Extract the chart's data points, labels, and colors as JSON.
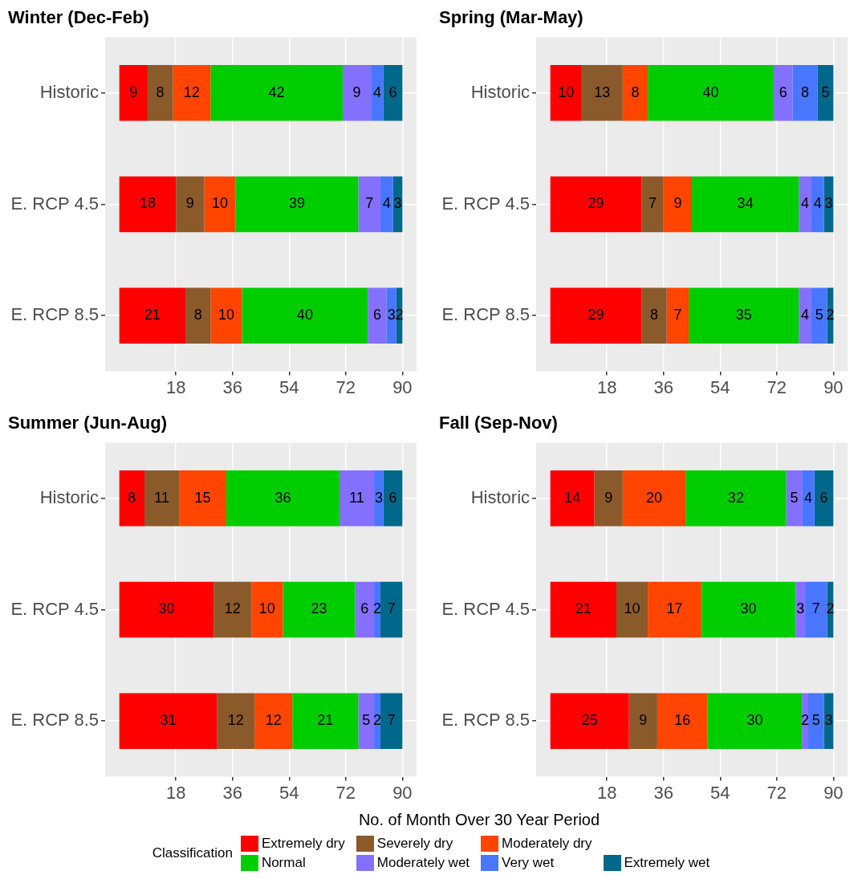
{
  "chart_data": [
    {
      "type": "bar",
      "orientation": "horizontal",
      "stacked": true,
      "title": "Winter (Dec-Feb)",
      "categories": [
        "Historic",
        "E. RCP 4.5",
        "E. RCP 8.5"
      ],
      "xlim": [
        -4.5,
        94.5
      ],
      "xticks": [
        18,
        36,
        54,
        72,
        90
      ],
      "grid": true,
      "data_labels": true,
      "xlabel": "No. of Month Over 30 Year Period",
      "legend_title": "Classification",
      "legend": "bottom",
      "series": [
        {
          "name": "Extremely dry",
          "color": "#ff0000",
          "values": [
            9,
            18,
            21
          ]
        },
        {
          "name": "Severely dry",
          "color": "#8b5a2b",
          "values": [
            8,
            9,
            8
          ]
        },
        {
          "name": "Moderately dry",
          "color": "#ff4500",
          "values": [
            12,
            10,
            10
          ]
        },
        {
          "name": "Normal",
          "color": "#00cd00",
          "values": [
            42,
            39,
            40
          ]
        },
        {
          "name": "Moderately wet",
          "color": "#8470ff",
          "values": [
            9,
            7,
            6
          ]
        },
        {
          "name": "Very wet",
          "color": "#4876ff",
          "values": [
            4,
            4,
            3
          ]
        },
        {
          "name": "Extremely wet",
          "color": "#00688b",
          "values": [
            6,
            3,
            2
          ]
        }
      ]
    },
    {
      "type": "bar",
      "orientation": "horizontal",
      "stacked": true,
      "title": "Spring (Mar-May)",
      "categories": [
        "Historic",
        "E. RCP 4.5",
        "E. RCP 8.5"
      ],
      "xlim": [
        -4.5,
        94.5
      ],
      "xticks": [
        18,
        36,
        54,
        72,
        90
      ],
      "grid": true,
      "data_labels": true,
      "series": [
        {
          "color": "#ff0000",
          "values": [
            10,
            29,
            29
          ]
        },
        {
          "color": "#8b5a2b",
          "values": [
            13,
            7,
            8
          ]
        },
        {
          "color": "#ff4500",
          "values": [
            8,
            9,
            7
          ]
        },
        {
          "color": "#00cd00",
          "values": [
            40,
            34,
            35
          ]
        },
        {
          "color": "#8470ff",
          "values": [
            6,
            4,
            4
          ]
        },
        {
          "color": "#4876ff",
          "values": [
            8,
            4,
            5
          ]
        },
        {
          "color": "#00688b",
          "values": [
            5,
            3,
            2
          ]
        }
      ]
    },
    {
      "type": "bar",
      "orientation": "horizontal",
      "stacked": true,
      "title": "Summer (Jun-Aug)",
      "categories": [
        "Historic",
        "E. RCP 4.5",
        "E. RCP 8.5"
      ],
      "xlim": [
        -4.5,
        94.5
      ],
      "xticks": [
        18,
        36,
        54,
        72,
        90
      ],
      "grid": true,
      "data_labels": true,
      "series": [
        {
          "color": "#ff0000",
          "values": [
            8,
            30,
            31
          ]
        },
        {
          "color": "#8b5a2b",
          "values": [
            11,
            12,
            12
          ]
        },
        {
          "color": "#ff4500",
          "values": [
            15,
            10,
            12
          ]
        },
        {
          "color": "#00cd00",
          "values": [
            36,
            23,
            21
          ]
        },
        {
          "color": "#8470ff",
          "values": [
            11,
            6,
            5
          ]
        },
        {
          "color": "#4876ff",
          "values": [
            3,
            2,
            2
          ]
        },
        {
          "color": "#00688b",
          "values": [
            6,
            7,
            7
          ]
        }
      ]
    },
    {
      "type": "bar",
      "orientation": "horizontal",
      "stacked": true,
      "title": "Fall (Sep-Nov)",
      "categories": [
        "Historic",
        "E. RCP 4.5",
        "E. RCP 8.5"
      ],
      "xlim": [
        -4.5,
        94.5
      ],
      "xticks": [
        18,
        36,
        54,
        72,
        90
      ],
      "grid": true,
      "data_labels": true,
      "series": [
        {
          "color": "#ff0000",
          "values": [
            14,
            21,
            25
          ]
        },
        {
          "color": "#8b5a2b",
          "values": [
            9,
            10,
            9
          ]
        },
        {
          "color": "#ff4500",
          "values": [
            20,
            17,
            16
          ]
        },
        {
          "color": "#00cd00",
          "values": [
            32,
            30,
            30
          ]
        },
        {
          "color": "#8470ff",
          "values": [
            5,
            3,
            2
          ]
        },
        {
          "color": "#4876ff",
          "values": [
            4,
            7,
            5
          ]
        },
        {
          "color": "#00688b",
          "values": [
            6,
            2,
            3
          ]
        }
      ]
    }
  ]
}
